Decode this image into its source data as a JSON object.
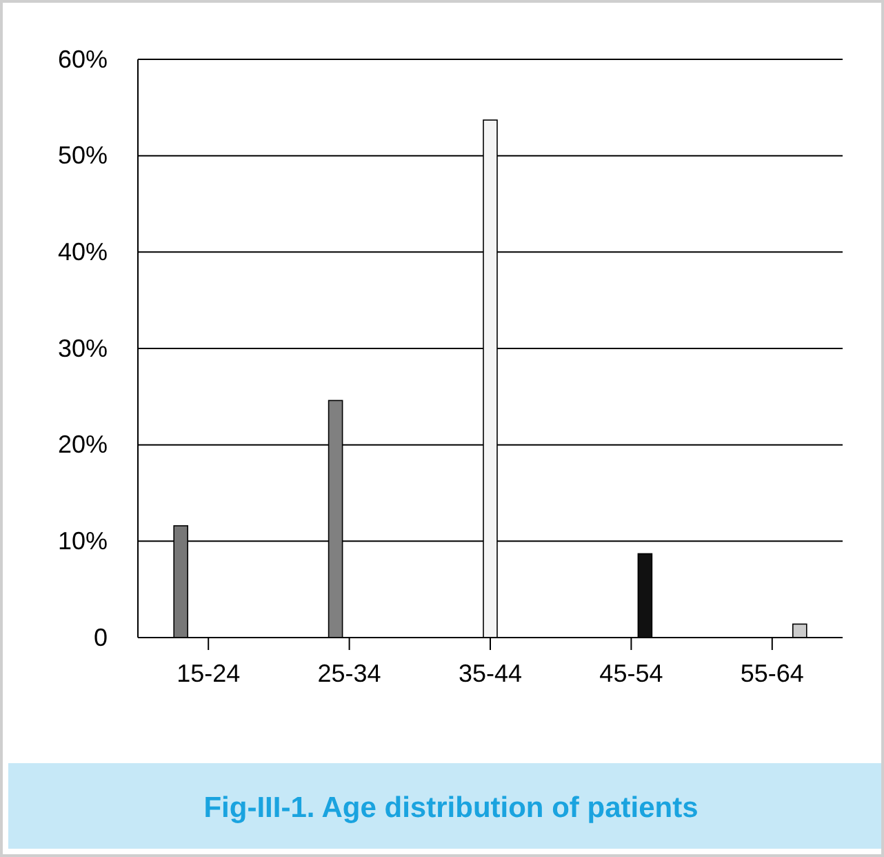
{
  "chart_data": {
    "type": "bar",
    "title": "Fig-III-1. Age distribution of patients",
    "categories": [
      "15-24",
      "25-34",
      "35-44",
      "45-54",
      "55-64"
    ],
    "series": [
      {
        "color": "#777777",
        "values": [
          11.6,
          null,
          null,
          null,
          null
        ]
      },
      {
        "color": "#808080",
        "values": [
          null,
          24.6,
          null,
          null,
          null
        ]
      },
      {
        "color": "#f4f4f4",
        "values": [
          null,
          null,
          53.7,
          null,
          null
        ]
      },
      {
        "color": "#111111",
        "values": [
          null,
          null,
          null,
          8.7,
          null
        ]
      },
      {
        "color": "#cccccc",
        "values": [
          null,
          null,
          null,
          null,
          1.4
        ]
      }
    ],
    "ylim": [
      0,
      60
    ],
    "yticks": [
      0,
      {
        "value": 10,
        "label": "10%"
      },
      {
        "value": 20,
        "label": "20%"
      },
      {
        "value": 30,
        "label": "30%"
      },
      {
        "value": 40,
        "label": "40%"
      },
      {
        "value": 50,
        "label": "50%"
      },
      {
        "value": 60,
        "label": "60%"
      }
    ],
    "grid": "y"
  }
}
